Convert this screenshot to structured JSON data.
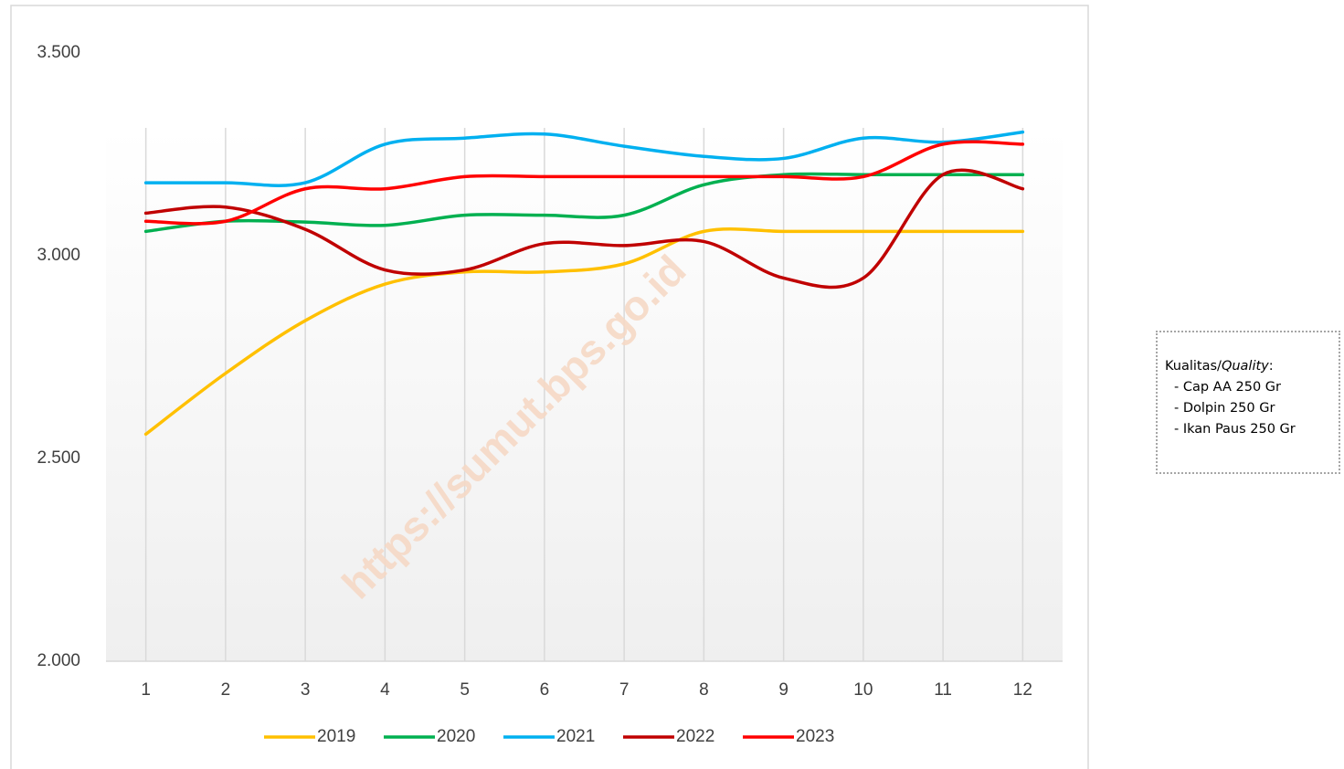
{
  "chart_data": {
    "type": "line",
    "categories": [
      "1",
      "2",
      "3",
      "4",
      "5",
      "6",
      "7",
      "8",
      "9",
      "10",
      "11",
      "12"
    ],
    "series": [
      {
        "name": "2019",
        "color": "#FFC000",
        "values": [
          2560,
          2710,
          2840,
          2930,
          2960,
          2960,
          2980,
          3060,
          3060,
          3060,
          3060,
          3060
        ]
      },
      {
        "name": "2020",
        "color": "#00B050",
        "values": [
          3060,
          3085,
          3083,
          3075,
          3100,
          3100,
          3100,
          3175,
          3200,
          3200,
          3200,
          3200
        ]
      },
      {
        "name": "2021",
        "color": "#00B0F0",
        "values": [
          3180,
          3180,
          3180,
          3275,
          3290,
          3300,
          3270,
          3245,
          3240,
          3290,
          3280,
          3305
        ]
      },
      {
        "name": "2022",
        "color": "#C00000",
        "values": [
          3105,
          3120,
          3065,
          2965,
          2965,
          3030,
          3025,
          3035,
          2945,
          2945,
          3200,
          3165
        ]
      },
      {
        "name": "2023",
        "color": "#FF0000",
        "values": [
          3085,
          3085,
          3165,
          3165,
          3195,
          3195,
          3195,
          3195,
          3195,
          3195,
          3275,
          3275
        ]
      }
    ],
    "ylim": [
      2000,
      3500
    ],
    "yticks": [
      {
        "value": 2000,
        "label": "2.000"
      },
      {
        "value": 2500,
        "label": "2.500"
      },
      {
        "value": 3000,
        "label": "3.000"
      },
      {
        "value": 3500,
        "label": "3.500"
      }
    ],
    "grid": true,
    "smooth": true,
    "legend": "bottom",
    "watermark": "https://sumut.bps.go.id"
  },
  "note": {
    "title": "Kualitas/",
    "title_italic": "Quality",
    "title_end": ":",
    "items": [
      "- Cap AA 250 Gr",
      "- Dolpin 250 Gr",
      "- Ikan Paus 250 Gr"
    ]
  }
}
